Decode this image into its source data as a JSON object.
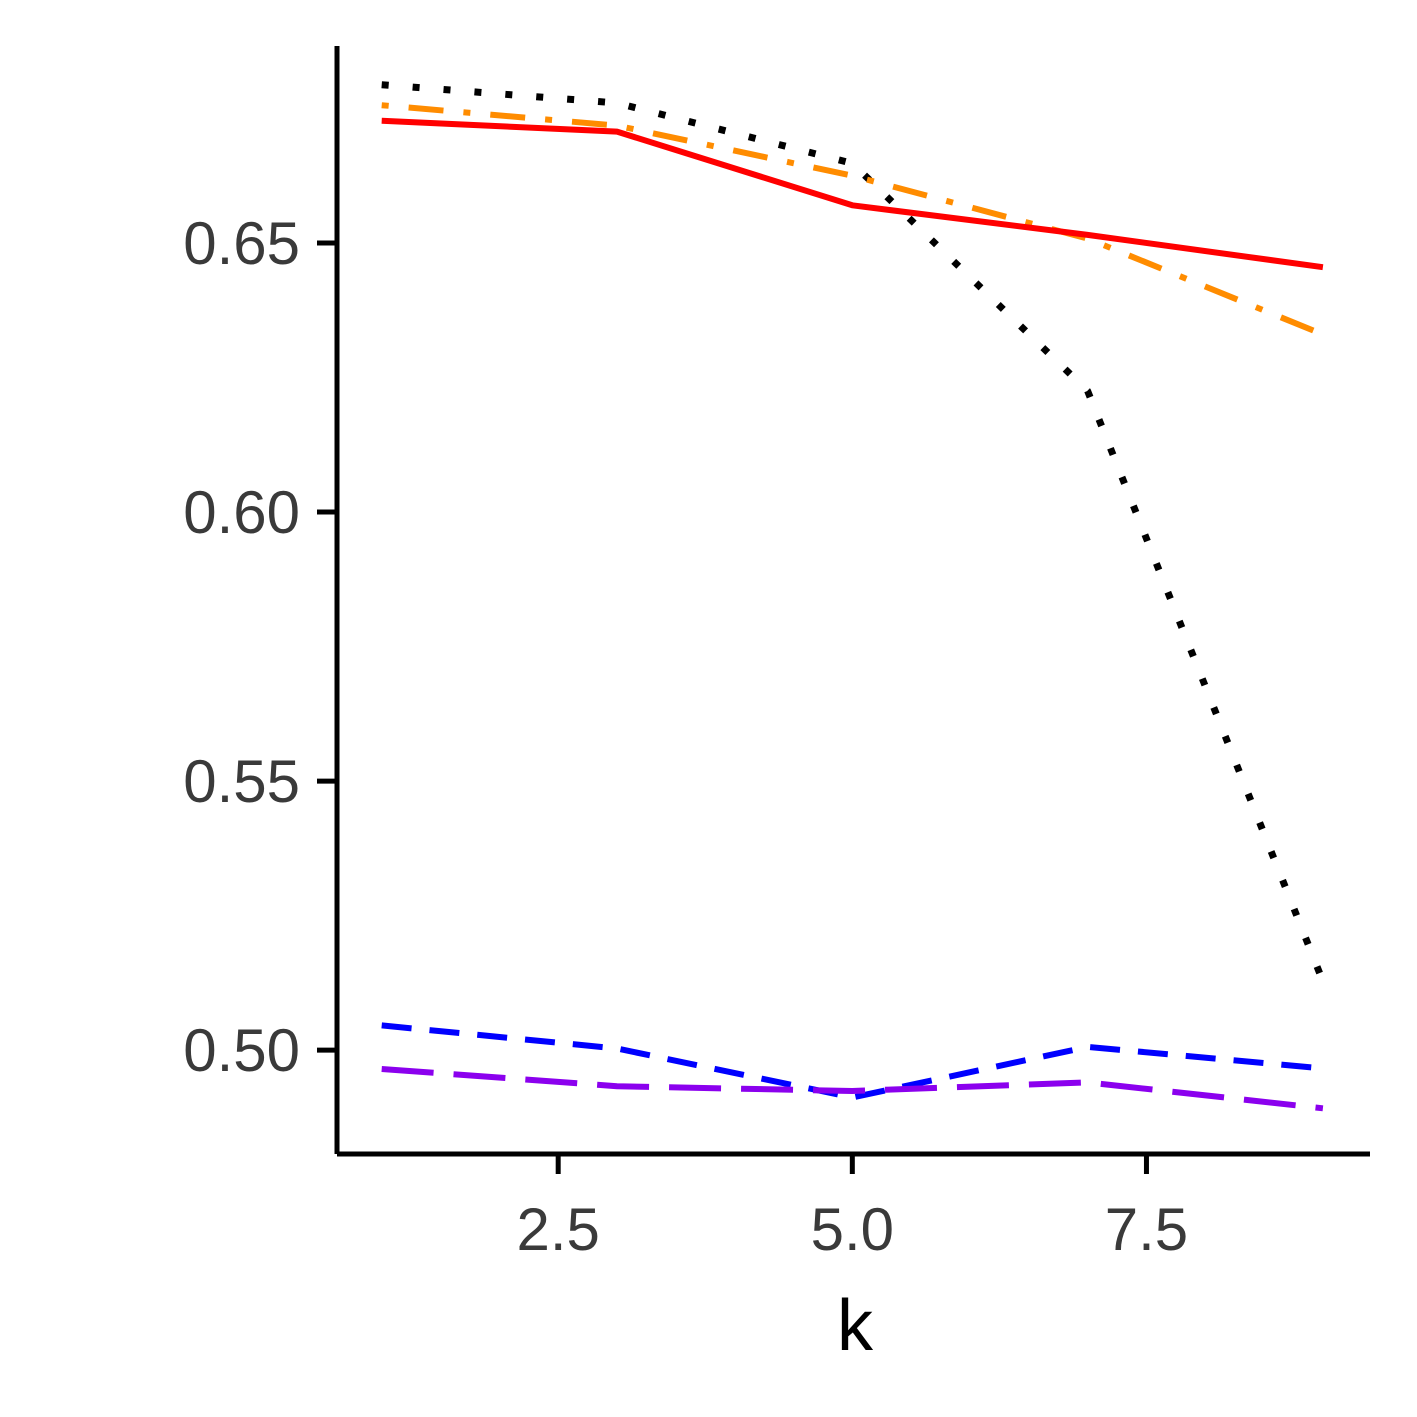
{
  "chart_data": {
    "type": "line",
    "title": "",
    "xlabel": "k",
    "ylabel": "",
    "xlim": [
      0.62,
      9.4
    ],
    "ylim": [
      0.4807,
      0.6866
    ],
    "x_ticks": [
      2.5,
      5.0,
      7.5
    ],
    "x_tick_labels": [
      "2.5",
      "5.0",
      "7.5"
    ],
    "y_ticks": [
      0.5,
      0.55,
      0.6,
      0.65
    ],
    "y_tick_labels": [
      "0.50",
      "0.55",
      "0.60",
      "0.65"
    ],
    "grid": false,
    "legend": "none",
    "x": [
      1,
      3,
      5,
      7,
      9
    ],
    "series": [
      {
        "color": "#000000",
        "linestyle": "dotted",
        "values": [
          0.6794,
          0.676,
          0.6648,
          0.6225,
          0.5128
        ]
      },
      {
        "color": "#FF8C00",
        "linestyle": "dotdash",
        "values": [
          0.6756,
          0.6718,
          0.6625,
          0.6508,
          0.633
        ]
      },
      {
        "color": "#FF0000",
        "linestyle": "solid",
        "values": [
          0.6727,
          0.6707,
          0.657,
          0.6515,
          0.6455
        ]
      },
      {
        "color": "#0000FF",
        "linestyle": "dashed",
        "values": [
          0.5046,
          0.5003,
          0.4912,
          0.5006,
          0.4966
        ]
      },
      {
        "color": "#8B00EE",
        "linestyle": "longdash",
        "values": [
          0.4965,
          0.4933,
          0.4924,
          0.494,
          0.4892
        ]
      }
    ]
  }
}
